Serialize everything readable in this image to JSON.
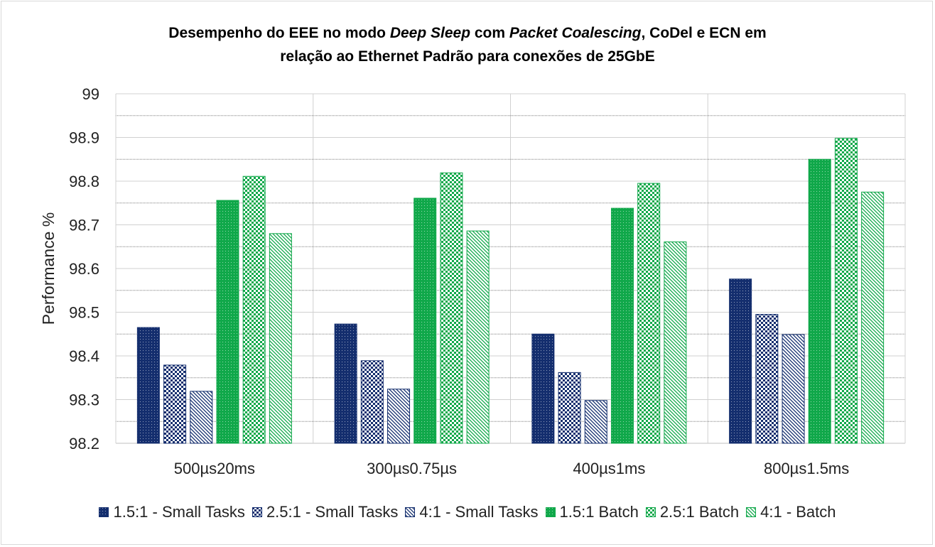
{
  "chart_data": {
    "type": "bar",
    "title_parts": [
      [
        {
          "text": "Desempenho do EEE no modo ",
          "italic": false
        },
        {
          "text": "Deep Sleep",
          "italic": true
        },
        {
          "text": " com ",
          "italic": false
        },
        {
          "text": "Packet Coalescing",
          "italic": true
        },
        {
          "text": ", CoDel e ECN em",
          "italic": false
        }
      ],
      [
        {
          "text": "relação ao Ethernet Padrão para conexões de 25GbE",
          "italic": false
        }
      ]
    ],
    "ylabel": "Performance %",
    "xlabel": "",
    "ylim": [
      98.2,
      99
    ],
    "yticks": [
      "98.2",
      "98.3",
      "98.4",
      "98.5",
      "98.6",
      "98.7",
      "98.8",
      "98.9",
      "99"
    ],
    "categories": [
      "500µs20ms",
      "300µs0.75µs",
      "400µs1ms",
      "800µs1.5ms"
    ],
    "series": [
      {
        "name": "1.5:1 - Small Tasks",
        "values": [
          98.465,
          98.473,
          98.45,
          98.576
        ],
        "color": "#142e6e",
        "pattern": "dots-dense"
      },
      {
        "name": "2.5:1 - Small Tasks",
        "values": [
          98.379,
          98.389,
          98.362,
          98.495
        ],
        "color": "#142e6e",
        "pattern": "checker"
      },
      {
        "name": "4:1 - Small Tasks",
        "values": [
          98.319,
          98.324,
          98.298,
          98.449
        ],
        "color": "#142e6e",
        "pattern": "diagonal"
      },
      {
        "name": "1.5:1 Batch",
        "values": [
          98.756,
          98.761,
          98.738,
          98.85
        ],
        "color": "#10a84a",
        "pattern": "dots-dense"
      },
      {
        "name": "2.5:1 Batch",
        "values": [
          98.811,
          98.819,
          98.795,
          98.898
        ],
        "color": "#10a84a",
        "pattern": "checker"
      },
      {
        "name": "4:1 - Batch",
        "values": [
          98.68,
          98.686,
          98.661,
          98.775
        ],
        "color": "#10a84a",
        "pattern": "diagonal"
      }
    ],
    "grid": {
      "major": true,
      "minor": true,
      "vertical_category_separators": true
    },
    "legend_position": "bottom"
  }
}
